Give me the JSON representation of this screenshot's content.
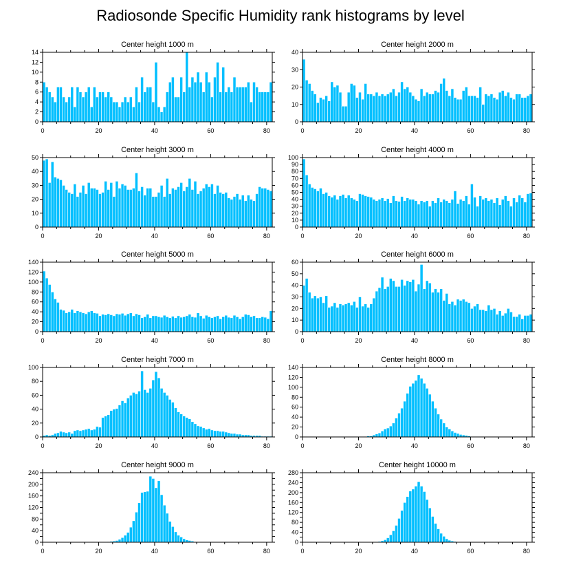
{
  "title": "Radiosonde Specific Humidity rank histograms by level",
  "bar_color": "#00bfff",
  "bar_edge_color": "#ffffff",
  "axis_color": "#000000",
  "chart_data": [
    {
      "type": "bar",
      "title": "Center height 1000 m",
      "xlim": [
        0,
        82
      ],
      "ylim": [
        0,
        14
      ],
      "xticks": [
        0,
        20,
        40,
        60,
        80
      ],
      "yticks": [
        0,
        2,
        4,
        6,
        8,
        10,
        12,
        14
      ],
      "values": [
        8,
        7,
        6,
        5,
        4,
        7,
        7,
        5,
        4,
        5,
        7,
        3,
        7,
        6,
        5,
        6,
        7,
        3,
        7,
        5,
        6,
        6,
        5,
        6,
        5,
        4,
        4,
        3,
        4,
        5,
        4,
        5,
        3,
        7,
        4,
        9,
        6,
        7,
        7,
        4,
        12,
        3,
        2,
        3,
        6,
        8,
        9,
        5,
        5,
        9,
        6,
        14,
        7,
        9,
        8,
        10,
        8,
        6,
        10,
        8,
        5,
        9,
        12,
        6,
        11,
        6,
        7,
        6,
        9,
        7,
        7,
        7,
        7,
        8,
        4,
        8,
        7,
        6,
        6,
        6,
        6,
        8
      ]
    },
    {
      "type": "bar",
      "title": "Center height 2000 m",
      "xlim": [
        0,
        82
      ],
      "ylim": [
        0,
        40
      ],
      "xticks": [
        0,
        20,
        40,
        60,
        80
      ],
      "yticks": [
        0,
        10,
        20,
        30,
        40
      ],
      "values": [
        36,
        24,
        22,
        18,
        16,
        11,
        14,
        13,
        15,
        12,
        23,
        20,
        21,
        17,
        9,
        9,
        17,
        22,
        21,
        14,
        17,
        13,
        22,
        16,
        16,
        15,
        17,
        15,
        16,
        15,
        16,
        17,
        19,
        15,
        17,
        23,
        19,
        20,
        17,
        15,
        13,
        12,
        19,
        15,
        17,
        16,
        16,
        18,
        17,
        22,
        25,
        18,
        15,
        19,
        14,
        13,
        13,
        18,
        20,
        15,
        15,
        15,
        14,
        20,
        10,
        16,
        15,
        16,
        14,
        13,
        17,
        18,
        15,
        17,
        14,
        13,
        16,
        16,
        14,
        14,
        15,
        16
      ]
    },
    {
      "type": "bar",
      "title": "Center height 3000 m",
      "xlim": [
        0,
        82
      ],
      "ylim": [
        0,
        50
      ],
      "xticks": [
        0,
        20,
        40,
        60,
        80
      ],
      "yticks": [
        0,
        10,
        20,
        30,
        40,
        50
      ],
      "values": [
        48,
        49,
        32,
        47,
        36,
        35,
        34,
        30,
        27,
        25,
        24,
        31,
        22,
        25,
        30,
        24,
        32,
        28,
        28,
        27,
        24,
        25,
        33,
        27,
        32,
        22,
        33,
        28,
        31,
        30,
        27,
        27,
        28,
        39,
        26,
        29,
        23,
        28,
        28,
        22,
        22,
        25,
        30,
        22,
        35,
        24,
        28,
        27,
        29,
        32,
        26,
        29,
        35,
        27,
        33,
        24,
        26,
        28,
        31,
        29,
        31,
        24,
        30,
        25,
        24,
        25,
        21,
        20,
        22,
        24,
        20,
        23,
        19,
        23,
        20,
        19,
        24,
        29,
        28,
        28,
        27,
        26
      ]
    },
    {
      "type": "bar",
      "title": "Center height 4000 m",
      "xlim": [
        0,
        82
      ],
      "ylim": [
        0,
        100
      ],
      "xticks": [
        0,
        20,
        40,
        60,
        80
      ],
      "yticks": [
        0,
        10,
        20,
        30,
        40,
        50,
        60,
        70,
        80,
        90,
        100
      ],
      "values": [
        98,
        75,
        62,
        57,
        55,
        52,
        56,
        48,
        50,
        45,
        43,
        46,
        40,
        45,
        47,
        42,
        46,
        42,
        40,
        38,
        48,
        47,
        45,
        44,
        43,
        40,
        38,
        40,
        42,
        38,
        41,
        35,
        45,
        38,
        37,
        44,
        38,
        42,
        40,
        40,
        38,
        33,
        38,
        36,
        38,
        30,
        38,
        35,
        42,
        36,
        40,
        38,
        35,
        40,
        52,
        34,
        40,
        38,
        45,
        33,
        62,
        43,
        30,
        45,
        40,
        42,
        38,
        40,
        35,
        42,
        32,
        40,
        45,
        38,
        30,
        42,
        36,
        46,
        42,
        36,
        48,
        49
      ]
    },
    {
      "type": "bar",
      "title": "Center height 5000 m",
      "xlim": [
        0,
        82
      ],
      "ylim": [
        0,
        140
      ],
      "xticks": [
        0,
        20,
        40,
        60,
        80
      ],
      "yticks": [
        0,
        20,
        40,
        60,
        80,
        100,
        120,
        140
      ],
      "values": [
        122,
        108,
        95,
        80,
        66,
        59,
        45,
        43,
        38,
        40,
        45,
        38,
        42,
        40,
        38,
        36,
        40,
        42,
        38,
        37,
        32,
        35,
        34,
        36,
        34,
        32,
        36,
        35,
        37,
        33,
        36,
        38,
        32,
        36,
        34,
        28,
        30,
        35,
        28,
        32,
        32,
        30,
        29,
        33,
        30,
        28,
        31,
        28,
        32,
        29,
        30,
        32,
        35,
        30,
        29,
        38,
        32,
        27,
        33,
        30,
        28,
        30,
        32,
        26,
        30,
        33,
        29,
        28,
        33,
        30,
        26,
        30,
        35,
        34,
        30,
        32,
        28,
        28,
        30,
        29,
        26,
        42
      ]
    },
    {
      "type": "bar",
      "title": "Center height 6000 m",
      "xlim": [
        0,
        82
      ],
      "ylim": [
        0,
        60
      ],
      "xticks": [
        0,
        20,
        40,
        60,
        80
      ],
      "yticks": [
        0,
        10,
        20,
        30,
        40,
        50,
        60
      ],
      "values": [
        40,
        46,
        34,
        29,
        31,
        29,
        30,
        25,
        31,
        21,
        22,
        25,
        21,
        24,
        23,
        24,
        25,
        23,
        26,
        21,
        30,
        22,
        24,
        21,
        24,
        29,
        35,
        38,
        47,
        37,
        39,
        46,
        44,
        39,
        39,
        45,
        40,
        44,
        43,
        45,
        35,
        41,
        58,
        37,
        44,
        42,
        34,
        37,
        34,
        37,
        27,
        33,
        24,
        26,
        23,
        28,
        27,
        28,
        26,
        25,
        20,
        22,
        24,
        19,
        19,
        18,
        23,
        19,
        20,
        15,
        18,
        14,
        16,
        20,
        17,
        13,
        13,
        15,
        11,
        14,
        14,
        15
      ]
    },
    {
      "type": "bar",
      "title": "Center height 7000 m",
      "xlim": [
        0,
        82
      ],
      "ylim": [
        0,
        100
      ],
      "xticks": [
        0,
        20,
        40,
        60,
        80
      ],
      "yticks": [
        0,
        20,
        40,
        60,
        80,
        100
      ],
      "values": [
        2,
        3,
        2,
        3,
        5,
        6,
        8,
        7,
        6,
        7,
        5,
        9,
        10,
        9,
        10,
        11,
        12,
        10,
        11,
        15,
        14,
        28,
        30,
        32,
        38,
        40,
        41,
        46,
        52,
        49,
        56,
        60,
        64,
        62,
        66,
        95,
        68,
        64,
        70,
        82,
        94,
        85,
        70,
        64,
        60,
        54,
        50,
        42,
        36,
        33,
        30,
        28,
        26,
        22,
        19,
        16,
        15,
        13,
        11,
        12,
        10,
        9,
        9,
        8,
        8,
        7,
        6,
        5,
        5,
        4,
        4,
        3,
        3,
        3,
        2,
        2,
        2,
        2,
        1,
        1,
        1,
        1
      ]
    },
    {
      "type": "bar",
      "title": "Center height 8000 m",
      "xlim": [
        0,
        82
      ],
      "ylim": [
        0,
        140
      ],
      "xticks": [
        0,
        20,
        40,
        60,
        80
      ],
      "yticks": [
        0,
        20,
        40,
        60,
        80,
        100,
        120,
        140
      ],
      "values": [
        0,
        0,
        0,
        0,
        0,
        0,
        0,
        0,
        0,
        0,
        0,
        0,
        0,
        0,
        1,
        0,
        0,
        0,
        0,
        0,
        1,
        0,
        1,
        2,
        2,
        4,
        6,
        8,
        12,
        16,
        18,
        22,
        28,
        38,
        48,
        58,
        72,
        88,
        102,
        108,
        114,
        125,
        118,
        108,
        98,
        86,
        72,
        58,
        46,
        36,
        28,
        20,
        16,
        12,
        9,
        7,
        5,
        4,
        3,
        2,
        1,
        1,
        1,
        0,
        0,
        0,
        0,
        0,
        0,
        0,
        0,
        0,
        0,
        0,
        0,
        0,
        0,
        0,
        0,
        0,
        0,
        0
      ]
    },
    {
      "type": "bar",
      "title": "Center height 9000 m",
      "xlim": [
        0,
        82
      ],
      "ylim": [
        0,
        240
      ],
      "xticks": [
        0,
        20,
        40,
        60,
        80
      ],
      "yticks": [
        0,
        20,
        40,
        60,
        80,
        100,
        120,
        140,
        160,
        180,
        200,
        220,
        240
      ],
      "ytick_labels": [
        "0",
        "",
        "40",
        "",
        "80",
        "",
        "120",
        "",
        "160",
        "",
        "200",
        "",
        "240"
      ],
      "values": [
        0,
        0,
        0,
        0,
        0,
        0,
        0,
        0,
        0,
        0,
        0,
        0,
        0,
        0,
        0,
        0,
        0,
        0,
        0,
        0,
        0,
        0,
        1,
        2,
        3,
        4,
        6,
        10,
        16,
        24,
        34,
        52,
        74,
        104,
        136,
        172,
        174,
        176,
        228,
        220,
        188,
        212,
        164,
        128,
        100,
        72,
        54,
        36,
        24,
        18,
        12,
        8,
        6,
        4,
        2,
        1,
        1,
        0,
        0,
        0,
        0,
        0,
        0,
        0,
        0,
        0,
        0,
        0,
        0,
        0,
        0,
        0,
        0,
        0,
        0,
        0,
        0,
        0,
        0,
        0,
        0,
        0
      ]
    },
    {
      "type": "bar",
      "title": "Center height 10000 m",
      "xlim": [
        0,
        82
      ],
      "ylim": [
        0,
        280
      ],
      "xticks": [
        0,
        20,
        40,
        60,
        80
      ],
      "yticks": [
        0,
        20,
        40,
        60,
        80,
        100,
        120,
        140,
        160,
        180,
        200,
        220,
        240,
        260,
        280
      ],
      "ytick_labels": [
        "0",
        "",
        "40",
        "",
        "80",
        "",
        "120",
        "",
        "160",
        "",
        "200",
        "",
        "240",
        "",
        "280"
      ],
      "values": [
        0,
        0,
        0,
        0,
        0,
        0,
        0,
        0,
        0,
        0,
        0,
        0,
        0,
        0,
        0,
        0,
        0,
        0,
        0,
        0,
        0,
        0,
        0,
        0,
        0,
        1,
        2,
        3,
        6,
        10,
        18,
        30,
        46,
        68,
        96,
        128,
        160,
        184,
        206,
        214,
        226,
        244,
        226,
        204,
        172,
        138,
        104,
        76,
        54,
        36,
        24,
        14,
        8,
        5,
        3,
        2,
        1,
        1,
        0,
        0,
        0,
        0,
        0,
        0,
        0,
        0,
        0,
        0,
        0,
        0,
        0,
        0,
        0,
        0,
        0,
        0,
        0,
        0,
        0,
        0,
        0,
        0
      ]
    }
  ]
}
